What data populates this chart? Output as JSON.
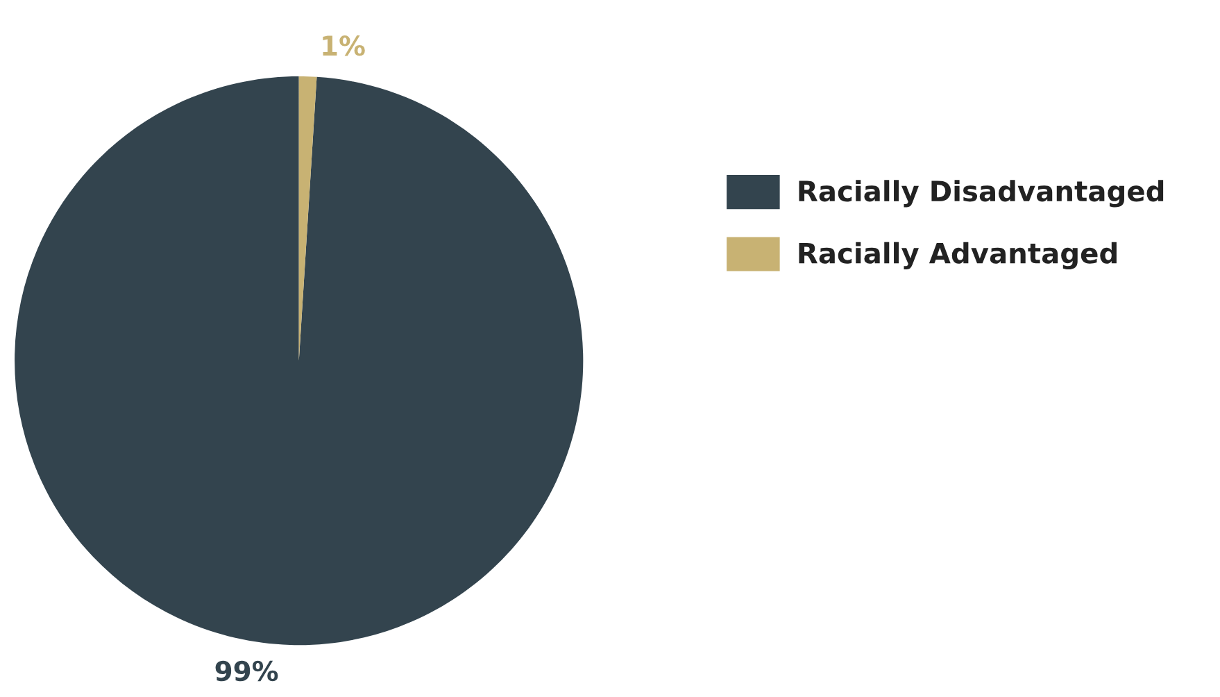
{
  "chart_data": {
    "type": "pie",
    "categories": [
      "Racially Disadvantaged",
      "Racially Advantaged"
    ],
    "values": [
      99,
      1
    ],
    "colors": [
      "#33444e",
      "#c8b273"
    ],
    "value_labels": [
      "99%",
      "1%"
    ],
    "legend": "right"
  }
}
